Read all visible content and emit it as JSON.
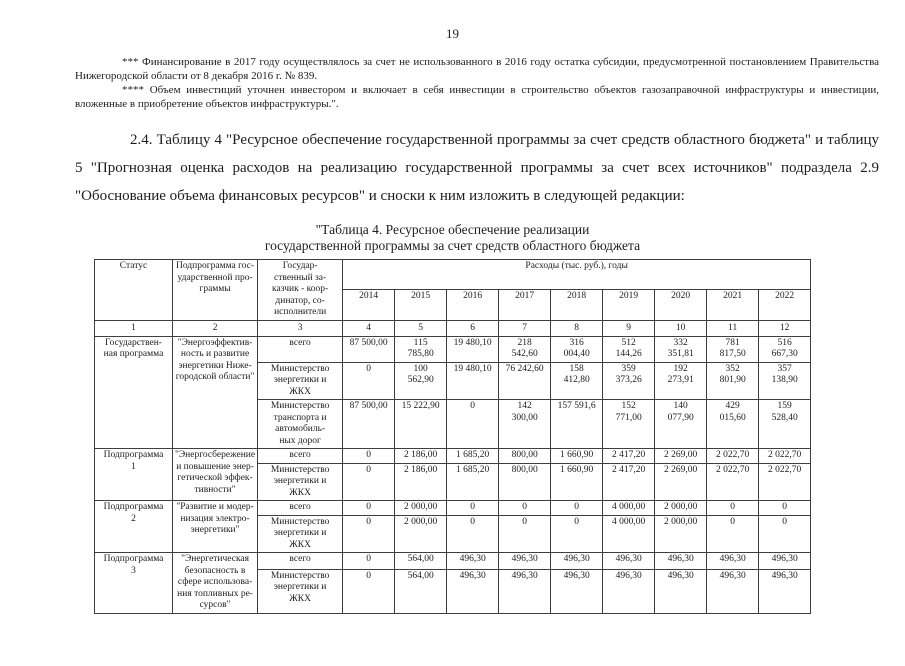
{
  "page_number": "19",
  "footnotes": [
    "*** Финансирование в 2017 году осуществлялось за счет не использованного в 2016 году остатка субсидии, предусмотренной постановлением Пра­вительства Нижегородской области от 8 декабря 2016 г. № 839.",
    "**** Объем инвестиций уточнен инвестором и включает в себя инвестиции в строительство объектов газозаправочной инфраструктуры и инвестиции, вложенные в приобретение объектов инфраструктуры.\"."
  ],
  "paragraph": "2.4. Таблицу 4 \"Ресурсное обеспечение государственной программы за счет средств областного бюджета\" и таблицу 5 \"Прогнозная оценка расходов на реализацию государственной программы за счет всех источников\" подраздела 2.9 \"Обоснование объема финансовых ресурсов\" и сноски к ним изложить в следующей редакции:",
  "table_title": "\"Таблица 4. Ресурсное обеспечение реализации\nгосударственной программы за счет средств областного бюджета",
  "table": {
    "header": {
      "status": "Статус",
      "subprogram": "Подпрограмма гос-\nударственной про-\nграммы",
      "customer": "Государ-\nственный за-\nказчик - коор-\nдинатор, со-\nисполнители",
      "expenses": "Расходы (тыс. руб.), годы",
      "years": [
        "2014",
        "2015",
        "2016",
        "2017",
        "2018",
        "2019",
        "2020",
        "2021",
        "2022"
      ],
      "col_numbers": [
        "1",
        "2",
        "3",
        "4",
        "5",
        "6",
        "7",
        "8",
        "9",
        "10",
        "11",
        "12"
      ]
    },
    "sections": [
      {
        "status": "Государствен-\nная программа",
        "subprogram": "\"Энергоэффектив-\nность и развитие\nэнергетики Ниже-\nгородской области\"",
        "rows": [
          {
            "customer": "всего",
            "values": [
              "87 500,00",
              "115\n785,80",
              "19 480,10",
              "218\n542,60",
              "316\n004,40",
              "512\n144,26",
              "332\n351,81",
              "781\n817,50",
              "516\n667,30"
            ]
          },
          {
            "customer": "Министерство\nэнергетики и\nЖКХ",
            "values": [
              "0",
              "100\n562,90",
              "19 480,10",
              "76 242,60",
              "158\n412,80",
              "359\n373,26",
              "192\n273,91",
              "352\n801,90",
              "357\n138,90"
            ]
          },
          {
            "customer": "Министерство\nтранспорта и\nавтомобиль-\nных дорог",
            "values": [
              "87 500,00",
              "15 222,90",
              "0",
              "142\n300,00",
              "157 591,6",
              "152\n771,00",
              "140\n077,90",
              "429\n015,60",
              "159\n528,40"
            ]
          }
        ]
      },
      {
        "status": "Подпрограмма\n1",
        "subprogram": "\"Энергосбережение\nи повышение энер-\nгетической эффек-\nтивности\"",
        "rows": [
          {
            "customer": "всего",
            "values": [
              "0",
              "2 186,00",
              "1 685,20",
              "800,00",
              "1 660,90",
              "2 417,20",
              "2 269,00",
              "2 022,70",
              "2 022,70"
            ]
          },
          {
            "customer": "Министерство\nэнергетики и\nЖКХ",
            "values": [
              "0",
              "2 186,00",
              "1 685,20",
              "800,00",
              "1 660,90",
              "2 417,20",
              "2 269,00",
              "2 022,70",
              "2 022,70"
            ]
          }
        ]
      },
      {
        "status": "Подпрограмма\n2",
        "subprogram": "\"Развитие и модер-\nнизация электро-\nэнергетики\"",
        "rows": [
          {
            "customer": "всего",
            "values": [
              "0",
              "2 000,00",
              "0",
              "0",
              "0",
              "4 000,00",
              "2 000,00",
              "0",
              "0"
            ]
          },
          {
            "customer": "Министерство\nэнергетики и\nЖКХ",
            "values": [
              "0",
              "2 000,00",
              "0",
              "0",
              "0",
              "4 000,00",
              "2 000,00",
              "0",
              "0"
            ]
          }
        ]
      },
      {
        "status": "Подпрограмма\n3",
        "subprogram": "\"Энергетическая\nбезопасность в\nсфере использова-\nния топливных ре-\nсурсов\"",
        "rows": [
          {
            "customer": "всего",
            "values": [
              "0",
              "564,00",
              "496,30",
              "496,30",
              "496,30",
              "496,30",
              "496,30",
              "496,30",
              "496,30"
            ]
          },
          {
            "customer": "Министерство\nэнергетики и\nЖКХ",
            "values": [
              "0",
              "564,00",
              "496,30",
              "496,30",
              "496,30",
              "496,30",
              "496,30",
              "496,30",
              "496,30"
            ]
          }
        ]
      }
    ]
  }
}
